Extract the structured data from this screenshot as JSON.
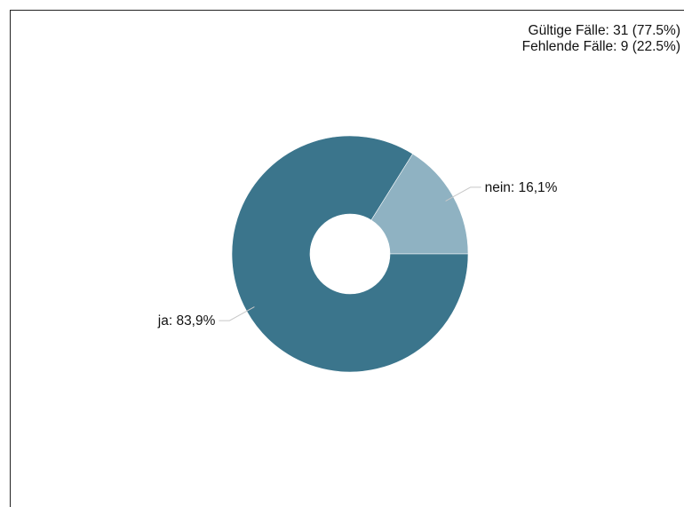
{
  "summary": {
    "valid_cases": "Gültige Fälle: 31 (77.5%)",
    "missing_cases": "Fehlende Fälle: 9 (22.5%)"
  },
  "chart_data": {
    "type": "pie",
    "variant": "donut",
    "slices": [
      {
        "label": "nein",
        "value": 16.1,
        "display": "nein: 16,1%",
        "color": "#8fb2c2"
      },
      {
        "label": "ja",
        "value": 83.9,
        "display": "ja: 83,9%",
        "color": "#3b758c"
      }
    ],
    "start_angle_deg": 0,
    "direction": "counterclockwise"
  }
}
